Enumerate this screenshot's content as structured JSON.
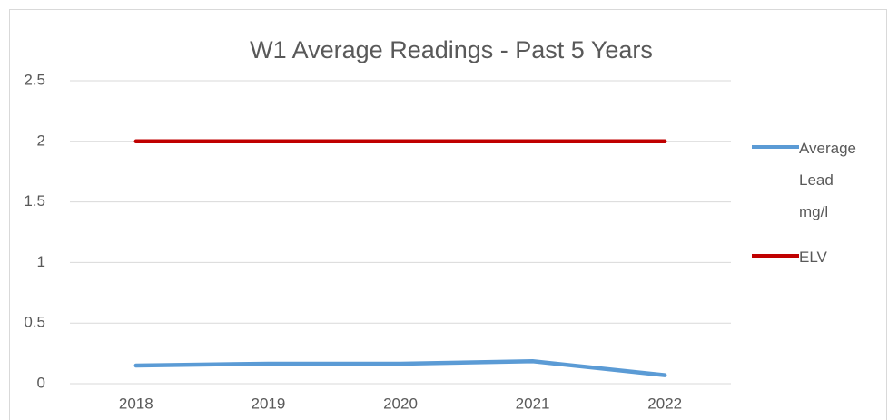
{
  "chart_data": {
    "type": "line",
    "title": "W1 Average Readings - Past 5 Years",
    "categories": [
      "2018",
      "2019",
      "2020",
      "2021",
      "2022"
    ],
    "series": [
      {
        "name": "Average Lead mg/l",
        "color": "#5b9bd5",
        "values": [
          0.15,
          0.165,
          0.165,
          0.185,
          0.07
        ]
      },
      {
        "name": "ELV",
        "color": "#c00000",
        "values": [
          2,
          2,
          2,
          2,
          2
        ]
      }
    ],
    "ylim": [
      0,
      2.5
    ],
    "yticks": [
      0,
      0.5,
      1,
      1.5,
      2,
      2.5
    ],
    "grid": true,
    "legend": "right"
  }
}
